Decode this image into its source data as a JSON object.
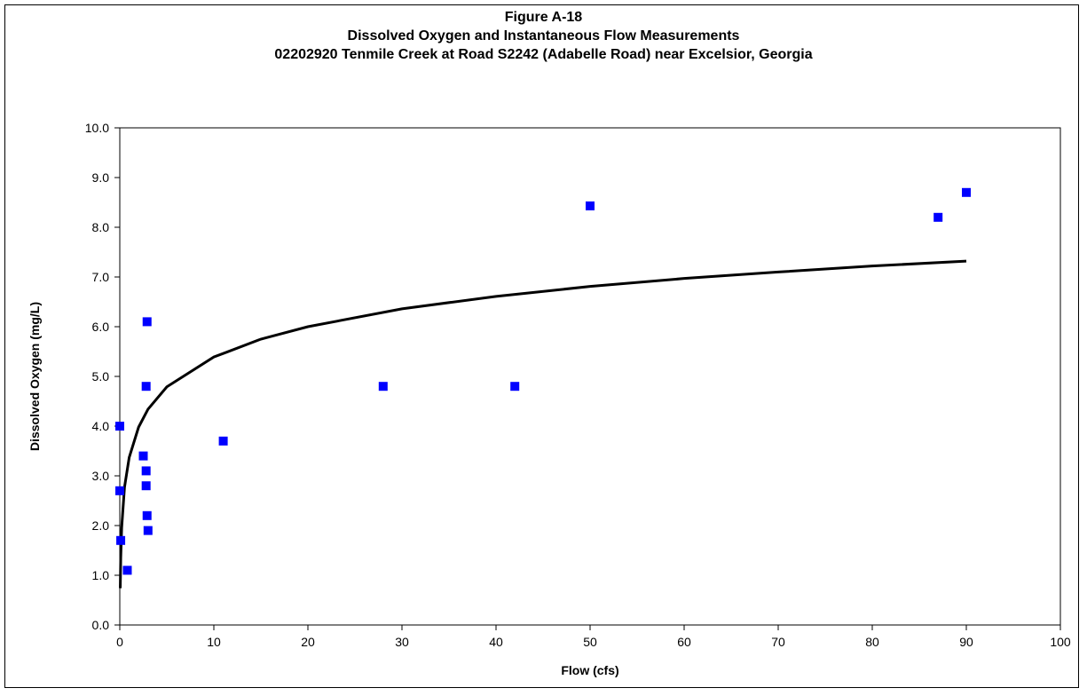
{
  "chart_data": {
    "type": "scatter",
    "title_lines": [
      "Figure A-18",
      "Dissolved Oxygen and Instantaneous Flow Measurements",
      "02202920 Tenmile Creek at Road S2242 (Adabelle Road) near Excelsior, Georgia"
    ],
    "xlabel": "Flow (cfs)",
    "ylabel": "Dissolved Oxygen (mg/L)",
    "xlim": [
      0,
      100
    ],
    "ylim": [
      0,
      10
    ],
    "x_ticks": [
      "0",
      "10",
      "20",
      "30",
      "40",
      "50",
      "60",
      "70",
      "80",
      "90",
      "100"
    ],
    "y_ticks": [
      "0.0",
      "1.0",
      "2.0",
      "3.0",
      "4.0",
      "5.0",
      "6.0",
      "7.0",
      "8.0",
      "9.0",
      "10.0"
    ],
    "grid": "none",
    "legend": "none",
    "marker_color": "#0000ff",
    "trendline_color": "#000000",
    "points": [
      {
        "x": 0.0,
        "y": 4.0
      },
      {
        "x": 0.0,
        "y": 2.7
      },
      {
        "x": 0.1,
        "y": 1.7
      },
      {
        "x": 0.8,
        "y": 1.1
      },
      {
        "x": 2.5,
        "y": 3.4
      },
      {
        "x": 2.8,
        "y": 3.1
      },
      {
        "x": 2.8,
        "y": 2.8
      },
      {
        "x": 2.8,
        "y": 4.8
      },
      {
        "x": 2.9,
        "y": 6.1
      },
      {
        "x": 2.9,
        "y": 2.2
      },
      {
        "x": 3.0,
        "y": 1.9
      },
      {
        "x": 11.0,
        "y": 3.7
      },
      {
        "x": 28.0,
        "y": 4.8
      },
      {
        "x": 42.0,
        "y": 4.8
      },
      {
        "x": 50.0,
        "y": 8.43
      },
      {
        "x": 87.0,
        "y": 8.2
      },
      {
        "x": 90.0,
        "y": 8.7
      }
    ],
    "trendline": {
      "type": "logarithmic",
      "points": [
        {
          "x": 0.05,
          "y": 0.74
        },
        {
          "x": 0.1,
          "y": 1.35
        },
        {
          "x": 0.2,
          "y": 1.96
        },
        {
          "x": 0.5,
          "y": 2.77
        },
        {
          "x": 1,
          "y": 3.37
        },
        {
          "x": 2,
          "y": 3.98
        },
        {
          "x": 3,
          "y": 4.34
        },
        {
          "x": 5,
          "y": 4.79
        },
        {
          "x": 10,
          "y": 5.39
        },
        {
          "x": 15,
          "y": 5.75
        },
        {
          "x": 20,
          "y": 6.0
        },
        {
          "x": 30,
          "y": 6.36
        },
        {
          "x": 40,
          "y": 6.61
        },
        {
          "x": 50,
          "y": 6.81
        },
        {
          "x": 60,
          "y": 6.97
        },
        {
          "x": 70,
          "y": 7.1
        },
        {
          "x": 80,
          "y": 7.22
        },
        {
          "x": 90,
          "y": 7.32
        }
      ]
    }
  }
}
